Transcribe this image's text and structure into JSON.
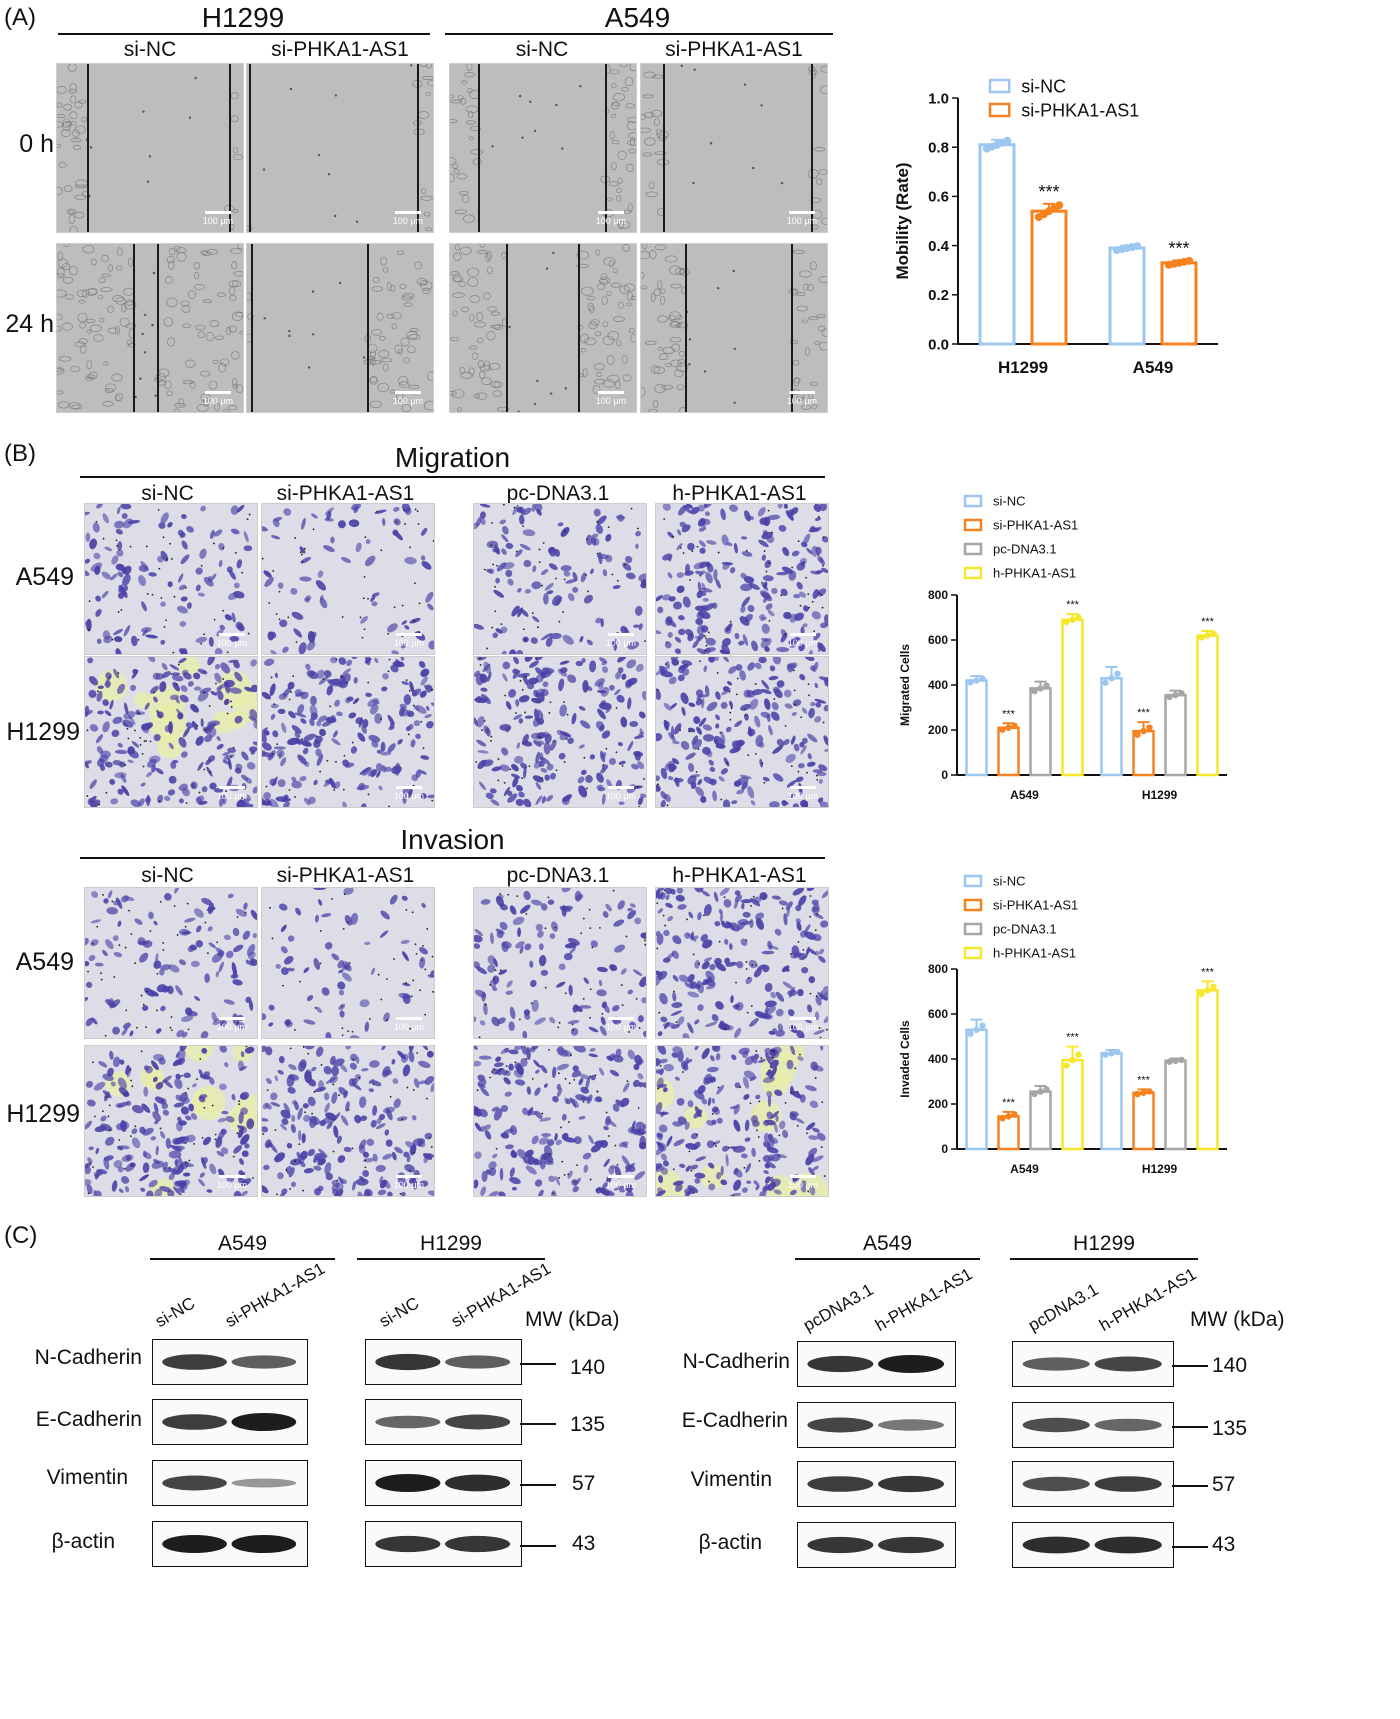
{
  "panels": {
    "A": {
      "letter": "(A)",
      "cell_lines": [
        "H1299",
        "A549"
      ],
      "conditions": [
        "si-NC",
        "si-PHKA1-AS1"
      ],
      "time_points": [
        "0 h",
        "24 h"
      ],
      "scale_label": "100 μm"
    },
    "B": {
      "letter": "(B)",
      "migration_title": "Migration",
      "invasion_title": "Invasion",
      "conditions": [
        "si-NC",
        "si-PHKA1-AS1",
        "pc-DNA3.1",
        "h-PHKA1-AS1"
      ],
      "cell_lines": [
        "A549",
        "H1299"
      ],
      "scale_label": "100 μm"
    },
    "C": {
      "letter": "(C)",
      "left_groups": [
        "A549",
        "H1299"
      ],
      "left_lanes": [
        "si-NC",
        "si-PHKA1-AS1"
      ],
      "right_groups": [
        "A549",
        "H1299"
      ],
      "right_lanes": [
        "pcDNA3.1",
        "h-PHKA1-AS1"
      ],
      "mw_header": "MW (kDa)",
      "proteins": [
        "N-Cadherin",
        "E-Cadherin",
        "Vimentin",
        "β-actin"
      ],
      "mw_values": [
        "140",
        "135",
        "57",
        "43"
      ]
    }
  },
  "colors": {
    "si_nc": "#9ec7f0",
    "si_phka": "#f5821f",
    "pc_dna": "#a6a6a6",
    "h_phka": "#f5e82a",
    "stain": "#4b3ea6"
  },
  "chart_data": [
    {
      "type": "bar",
      "categories": [
        "H1299",
        "A549"
      ],
      "series": [
        {
          "name": "si-NC",
          "values": [
            0.81,
            0.39
          ],
          "errors": [
            0.02,
            0.01
          ]
        },
        {
          "name": "si-PHKA1-AS1",
          "values": [
            0.54,
            0.33
          ],
          "errors": [
            0.03,
            0.01
          ]
        }
      ],
      "significance": [
        [
          "",
          "***"
        ],
        [
          "",
          "***"
        ]
      ],
      "ylabel": "Mobility (Rate)",
      "ylim": [
        0,
        1.0
      ],
      "yticks": [
        "0.0",
        "0.2",
        "0.4",
        "0.6",
        "0.8",
        "1.0"
      ],
      "legend": "top"
    },
    {
      "type": "bar",
      "categories": [
        "A549",
        "H1299"
      ],
      "series": [
        {
          "name": "si-NC",
          "values": [
            420,
            430
          ],
          "errors": [
            20,
            50
          ]
        },
        {
          "name": "si-PHKA1-AS1",
          "values": [
            210,
            195
          ],
          "errors": [
            20,
            40
          ]
        },
        {
          "name": "pc-DNA3.1",
          "values": [
            385,
            355
          ],
          "errors": [
            30,
            20
          ]
        },
        {
          "name": "h-PHKA1-AS1",
          "values": [
            690,
            620
          ],
          "errors": [
            25,
            20
          ]
        }
      ],
      "significance_labels": [
        [
          "",
          "***",
          "",
          "***"
        ],
        [
          "",
          "***",
          "",
          "***"
        ]
      ],
      "ylabel": "Migrated Cells",
      "ylim": [
        0,
        800
      ],
      "yticks": [
        "0",
        "200",
        "400",
        "600",
        "800"
      ],
      "legend": "top"
    },
    {
      "type": "bar",
      "categories": [
        "A549",
        "H1299"
      ],
      "series": [
        {
          "name": "si-NC",
          "values": [
            530,
            425
          ],
          "errors": [
            45,
            15
          ]
        },
        {
          "name": "si-PHKA1-AS1",
          "values": [
            145,
            250
          ],
          "errors": [
            20,
            15
          ]
        },
        {
          "name": "pc-DNA3.1",
          "values": [
            255,
            392
          ],
          "errors": [
            25,
            10
          ]
        },
        {
          "name": "h-PHKA1-AS1",
          "values": [
            395,
            705
          ],
          "errors": [
            60,
            40
          ]
        }
      ],
      "significance_labels": [
        [
          "",
          "***",
          "",
          "***"
        ],
        [
          "",
          "***",
          "",
          "***"
        ]
      ],
      "ylabel": "Invaded Cells",
      "ylim": [
        0,
        800
      ],
      "yticks": [
        "0",
        "200",
        "400",
        "600",
        "800"
      ],
      "legend": "top"
    }
  ]
}
